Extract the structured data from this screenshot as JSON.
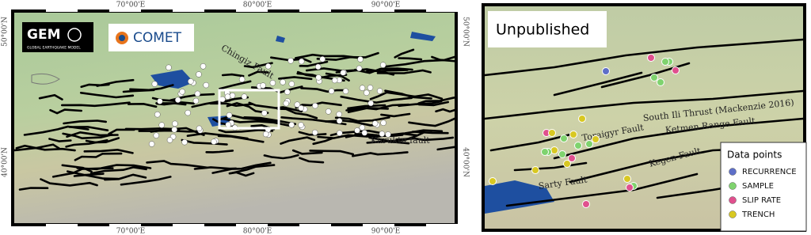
{
  "left_map": {
    "lon_labels": [
      "70°00'E",
      "80°00'E",
      "90°00'E"
    ],
    "lat_labels": [
      "50°00'N",
      "40°00'N"
    ],
    "logos": {
      "gem": "GEM",
      "gem_subtitle": "GLOBAL EARTHQUAKE MODEL",
      "comet": "COMET"
    },
    "fault_labels": [
      "Chingiz Fault",
      "Kuruktu fault"
    ]
  },
  "right_map": {
    "title": "Unpublished",
    "fault_labels": [
      "South Ili Thrust (Mackenzie 2016)",
      "Ketmen Range Fault",
      "Toraigyr Fault",
      "Kegen Fault",
      "Sarty Fault"
    ],
    "legend": {
      "title": "Data points",
      "items": [
        {
          "name": "RECURRENCE",
          "color": "#5e6fc8"
        },
        {
          "name": "SAMPLE",
          "color": "#7fd36e"
        },
        {
          "name": "SLIP RATE",
          "color": "#e0508e"
        },
        {
          "name": "TRENCH",
          "color": "#d8c822"
        }
      ]
    }
  }
}
